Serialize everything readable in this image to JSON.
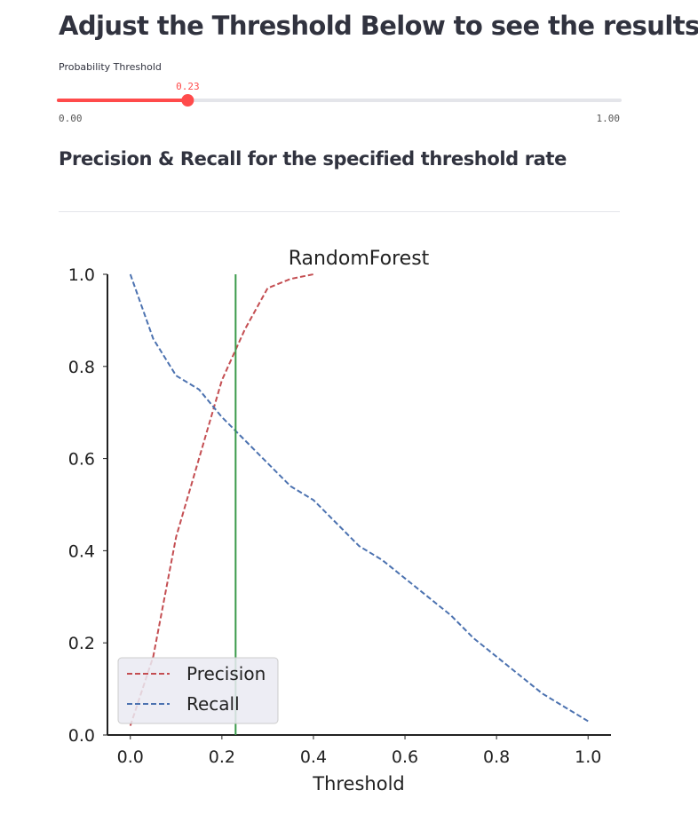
{
  "header": {
    "title": "Adjust the Threshold Below to see the results"
  },
  "slider": {
    "label": "Probability Threshold",
    "value": 0.23,
    "min": {
      "value": 0,
      "label": "0.00"
    },
    "max": {
      "value": 1,
      "label": "1.00"
    },
    "color": "#ff4b4b"
  },
  "subheader": "Precision & Recall for the specified threshold rate",
  "chart_data": {
    "type": "line",
    "title": "RandomForest",
    "x_label": "Threshold",
    "x": [
      0,
      0.05,
      0.1,
      0.15,
      0.2,
      0.25,
      0.3,
      0.35,
      0.4,
      0.45,
      0.5,
      0.55,
      0.6,
      0.65,
      0.7,
      0.75,
      0.8,
      0.85,
      0.9,
      0.95,
      1.0
    ],
    "series": [
      {
        "name": "Precision",
        "color": "#c44e52",
        "values": [
          0.02,
          0.17,
          0.43,
          0.6,
          0.77,
          0.88,
          0.97,
          0.99,
          1.0,
          null,
          null,
          null,
          null,
          null,
          null,
          null,
          null,
          null,
          null,
          null,
          null
        ]
      },
      {
        "name": "Recall",
        "color": "#4c72b0",
        "values": [
          1.0,
          0.86,
          0.78,
          0.75,
          0.69,
          0.64,
          0.59,
          0.54,
          0.51,
          0.46,
          0.41,
          0.38,
          0.34,
          0.3,
          0.26,
          0.21,
          0.17,
          0.13,
          0.09,
          0.06,
          0.03
        ]
      }
    ],
    "threshold_line": {
      "value": 0.23,
      "color": "#3a9a4a"
    },
    "xlim": [
      -0.05,
      1.05
    ],
    "ylim": [
      0,
      1
    ],
    "xticks": [
      {
        "value": 0,
        "label": "0.0"
      },
      0.2,
      0.4,
      0.6,
      0.8,
      {
        "value": 1,
        "label": "1.0"
      }
    ],
    "yticks": [
      {
        "value": 0,
        "label": "0.0"
      },
      0.2,
      0.4,
      0.6,
      0.8,
      {
        "value": 1,
        "label": "1.0"
      }
    ],
    "legend": "lower left",
    "line_style": "dashed"
  }
}
